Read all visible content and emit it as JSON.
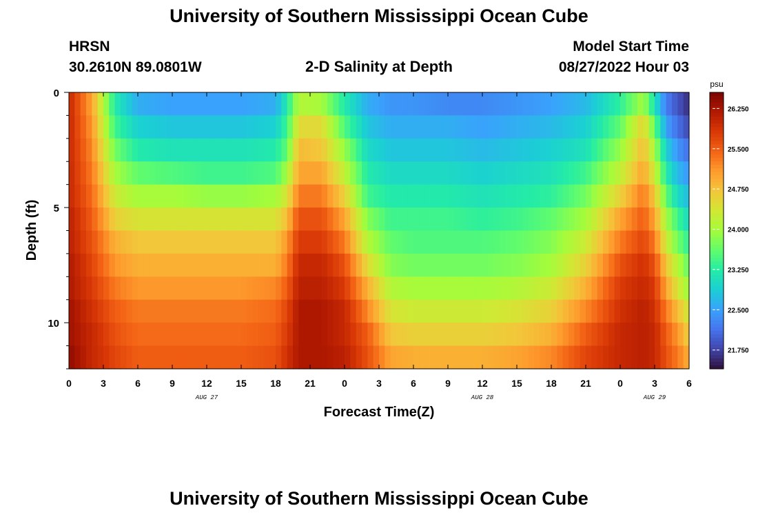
{
  "header": {
    "title": "University of Southern Mississippi Ocean Cube",
    "station": "HRSN",
    "coords": "30.2610N  89.0801W",
    "plot_title": "2-D Salinity at Depth",
    "model_label": "Model Start Time",
    "model_time": "08/27/2022 Hour 03"
  },
  "footer": {
    "title": "University of Southern Mississippi Ocean Cube"
  },
  "colors": {
    "background": "#ffffff",
    "colormap": [
      "#30123b",
      "#4145ab",
      "#4675ed",
      "#39a2fc",
      "#1bcfd4",
      "#24eca6",
      "#61fc6c",
      "#a4fc3b",
      "#d1e834",
      "#f3c63a",
      "#fe9b2d",
      "#f36315",
      "#d93806",
      "#b11901",
      "#7a0402"
    ]
  },
  "chart_data": {
    "type": "heatmap",
    "title": "2-D Salinity at Depth",
    "xlabel": "Forecast Time(Z)",
    "ylabel": "Depth (ft)",
    "x_range_hours": [
      0,
      54
    ],
    "x_ticks": [
      "0",
      "3",
      "6",
      "9",
      "12",
      "15",
      "18",
      "21",
      "0",
      "3",
      "6",
      "9",
      "12",
      "15",
      "18",
      "21",
      "0",
      "3",
      "6"
    ],
    "day_labels": [
      {
        "label": "AUG 27",
        "hour": 12
      },
      {
        "label": "AUG 28",
        "hour": 36
      },
      {
        "label": "AUG 29",
        "hour": 51
      }
    ],
    "y_range_ft": [
      0,
      12
    ],
    "y_ticks": [
      0,
      5,
      10
    ],
    "colorbar": {
      "unit": "psu",
      "min": 21.4,
      "max": 26.55,
      "ticks": [
        "26.250",
        "25.500",
        "24.750",
        "24.000",
        "23.250",
        "22.500",
        "21.750"
      ]
    },
    "depth_levels_ft": [
      0.5,
      1.5,
      2.5,
      3.5,
      4.5,
      5.5,
      6.5,
      7.5,
      8.5,
      9.5,
      10.5,
      11.5
    ],
    "hours": [
      0,
      2,
      4,
      6,
      9,
      12,
      15,
      18,
      19,
      20,
      22,
      24,
      26,
      28,
      30,
      33,
      36,
      39,
      42,
      45,
      48,
      50,
      51,
      52,
      53,
      54
    ],
    "salinity_psu": [
      [
        26.0,
        25.0,
        23.2,
        22.6,
        22.5,
        22.5,
        22.5,
        22.6,
        23.2,
        24.1,
        24.0,
        23.2,
        22.6,
        22.4,
        22.4,
        22.3,
        22.3,
        22.4,
        22.5,
        22.7,
        23.3,
        24.0,
        23.1,
        22.2,
        21.9,
        21.6
      ],
      [
        26.0,
        25.1,
        23.4,
        22.9,
        22.8,
        22.8,
        22.8,
        22.9,
        23.4,
        24.5,
        24.5,
        23.5,
        22.8,
        22.6,
        22.6,
        22.6,
        22.5,
        22.6,
        22.7,
        22.9,
        23.6,
        24.6,
        23.6,
        22.5,
        22.1,
        21.8
      ],
      [
        26.0,
        25.2,
        23.7,
        23.2,
        23.1,
        23.1,
        23.1,
        23.2,
        23.6,
        24.8,
        24.7,
        23.9,
        23.0,
        22.8,
        22.8,
        22.8,
        22.7,
        22.8,
        22.9,
        23.1,
        23.9,
        24.8,
        24.0,
        22.9,
        22.4,
        22.1
      ],
      [
        26.0,
        25.3,
        24.0,
        23.6,
        23.5,
        23.4,
        23.4,
        23.5,
        24.0,
        25.0,
        25.0,
        24.2,
        23.2,
        23.0,
        23.0,
        23.0,
        22.9,
        23.0,
        23.1,
        23.4,
        24.2,
        25.0,
        24.3,
        23.2,
        22.7,
        22.4
      ],
      [
        26.0,
        25.4,
        24.3,
        24.0,
        24.0,
        23.9,
        23.9,
        24.0,
        24.4,
        25.3,
        25.3,
        24.6,
        23.4,
        23.2,
        23.2,
        23.2,
        23.1,
        23.2,
        23.3,
        23.7,
        24.6,
        25.3,
        24.7,
        23.6,
        23.0,
        22.7
      ],
      [
        26.1,
        25.5,
        24.6,
        24.4,
        24.4,
        24.4,
        24.4,
        24.4,
        24.8,
        25.6,
        25.6,
        25.0,
        23.8,
        23.4,
        23.4,
        23.4,
        23.3,
        23.4,
        23.6,
        24.0,
        25.0,
        25.5,
        25.0,
        24.0,
        23.4,
        23.0
      ],
      [
        26.1,
        25.6,
        24.9,
        24.7,
        24.7,
        24.7,
        24.7,
        24.7,
        25.1,
        25.8,
        25.8,
        25.3,
        24.1,
        23.6,
        23.5,
        23.5,
        23.5,
        23.6,
        23.8,
        24.3,
        25.3,
        25.7,
        25.3,
        24.3,
        23.7,
        23.3
      ],
      [
        26.2,
        25.7,
        25.1,
        24.9,
        24.9,
        24.9,
        24.9,
        24.9,
        25.3,
        26.0,
        26.0,
        25.6,
        24.5,
        23.8,
        23.7,
        23.7,
        23.7,
        23.8,
        24.0,
        24.6,
        25.6,
        25.9,
        25.6,
        24.7,
        24.1,
        23.6
      ],
      [
        26.2,
        25.8,
        25.3,
        25.1,
        25.1,
        25.1,
        25.1,
        25.2,
        25.5,
        26.1,
        26.1,
        25.8,
        24.9,
        24.1,
        24.0,
        24.0,
        24.0,
        24.1,
        24.3,
        24.9,
        25.8,
        26.0,
        25.8,
        25.0,
        24.4,
        23.9
      ],
      [
        26.3,
        25.9,
        25.5,
        25.3,
        25.3,
        25.3,
        25.3,
        25.4,
        25.7,
        26.2,
        26.2,
        26.0,
        25.2,
        24.4,
        24.3,
        24.3,
        24.3,
        24.4,
        24.6,
        25.2,
        25.9,
        26.1,
        25.9,
        25.3,
        24.8,
        24.3
      ],
      [
        26.3,
        26.0,
        25.6,
        25.4,
        25.4,
        25.4,
        25.4,
        25.5,
        25.8,
        26.2,
        26.2,
        26.0,
        25.5,
        24.7,
        24.6,
        24.6,
        24.6,
        24.7,
        24.9,
        25.5,
        26.0,
        26.1,
        26.0,
        25.5,
        25.1,
        24.6
      ],
      [
        26.4,
        26.0,
        25.7,
        25.5,
        25.5,
        25.5,
        25.5,
        25.6,
        25.9,
        26.2,
        26.2,
        26.1,
        25.6,
        25.0,
        24.9,
        24.9,
        24.9,
        25.0,
        25.2,
        25.7,
        26.0,
        26.1,
        26.0,
        25.6,
        25.3,
        24.9
      ]
    ]
  }
}
